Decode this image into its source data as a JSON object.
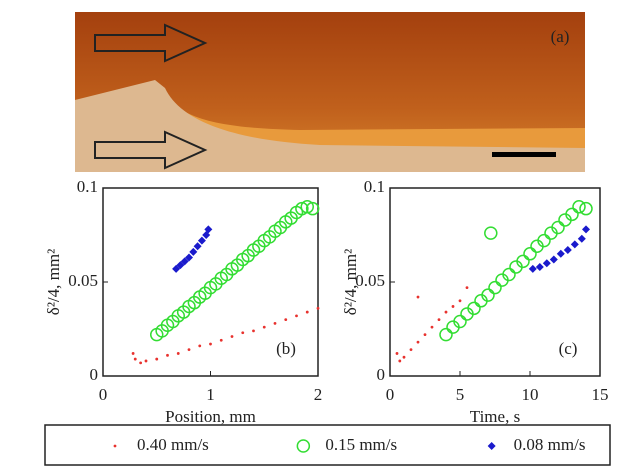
{
  "image": {
    "label": "(a)"
  },
  "chart_data": [
    {
      "type": "scatter",
      "panel_label": "(b)",
      "xlabel": "Position, mm",
      "ylabel": "δ²/4, mm²",
      "xlim": [
        0,
        2
      ],
      "ylim": [
        0,
        0.1
      ],
      "xticks": [
        0,
        1,
        2
      ],
      "yticks": [
        0,
        0.05,
        0.1
      ],
      "legend": "bottom",
      "series": [
        {
          "name": "0.40 mm/s",
          "color": "#e8322e",
          "marker": "dot",
          "x": [
            0.28,
            0.3,
            0.35,
            0.4,
            0.5,
            0.6,
            0.7,
            0.8,
            0.9,
            1.0,
            1.1,
            1.2,
            1.3,
            1.4,
            1.5,
            1.6,
            1.7,
            1.8,
            1.9,
            2.0
          ],
          "values": [
            0.012,
            0.009,
            0.007,
            0.008,
            0.009,
            0.011,
            0.012,
            0.014,
            0.016,
            0.017,
            0.019,
            0.021,
            0.023,
            0.024,
            0.026,
            0.028,
            0.03,
            0.032,
            0.034,
            0.036
          ]
        },
        {
          "name": "0.15 mm/s",
          "color": "#33dd33",
          "marker": "circle",
          "x": [
            0.5,
            0.55,
            0.6,
            0.65,
            0.7,
            0.75,
            0.8,
            0.85,
            0.9,
            0.95,
            1.0,
            1.05,
            1.1,
            1.15,
            1.2,
            1.25,
            1.3,
            1.35,
            1.4,
            1.45,
            1.5,
            1.55,
            1.6,
            1.65,
            1.7,
            1.75,
            1.8,
            1.85,
            1.9,
            1.95
          ],
          "values": [
            0.022,
            0.024,
            0.027,
            0.029,
            0.032,
            0.034,
            0.037,
            0.039,
            0.042,
            0.044,
            0.047,
            0.049,
            0.052,
            0.054,
            0.057,
            0.059,
            0.062,
            0.064,
            0.067,
            0.069,
            0.072,
            0.074,
            0.077,
            0.079,
            0.082,
            0.084,
            0.087,
            0.089,
            0.09,
            0.089
          ]
        },
        {
          "name": "0.08 mm/s",
          "color": "#1a1acc",
          "marker": "diamond",
          "x": [
            0.68,
            0.72,
            0.76,
            0.8,
            0.84,
            0.88,
            0.92,
            0.96,
            0.98
          ],
          "values": [
            0.057,
            0.059,
            0.061,
            0.063,
            0.066,
            0.069,
            0.072,
            0.075,
            0.078
          ]
        }
      ]
    },
    {
      "type": "scatter",
      "panel_label": "(c)",
      "xlabel": "Time, s",
      "ylabel": "δ²/4, mm²",
      "xlim": [
        0,
        15
      ],
      "ylim": [
        0,
        0.1
      ],
      "xticks": [
        0,
        5,
        10,
        15
      ],
      "yticks": [
        0,
        0.05,
        0.1
      ],
      "series": [
        {
          "color": "#e8322e",
          "marker": "dot",
          "x": [
            0.5,
            0.7,
            1.0,
            1.5,
            2.0,
            2.5,
            3.0,
            3.5,
            4.0,
            4.5,
            5.0,
            2.0,
            5.5
          ],
          "values": [
            0.012,
            0.008,
            0.01,
            0.014,
            0.018,
            0.022,
            0.026,
            0.03,
            0.034,
            0.037,
            0.04,
            0.042,
            0.047
          ]
        },
        {
          "color": "#33dd33",
          "marker": "circle",
          "x": [
            4.0,
            4.5,
            5.0,
            5.5,
            6.0,
            6.5,
            7.0,
            7.5,
            8.0,
            8.5,
            9.0,
            9.5,
            10.0,
            10.5,
            11.0,
            11.5,
            12.0,
            12.5,
            13.0,
            13.5,
            14.0,
            7.2
          ],
          "values": [
            0.022,
            0.026,
            0.029,
            0.033,
            0.036,
            0.04,
            0.043,
            0.047,
            0.051,
            0.054,
            0.058,
            0.061,
            0.065,
            0.069,
            0.072,
            0.076,
            0.079,
            0.083,
            0.086,
            0.09,
            0.089,
            0.076
          ]
        },
        {
          "color": "#1a1acc",
          "marker": "diamond",
          "x": [
            10.2,
            10.7,
            11.2,
            11.7,
            12.2,
            12.7,
            13.2,
            13.7,
            14.0
          ],
          "values": [
            0.057,
            0.058,
            0.06,
            0.062,
            0.065,
            0.067,
            0.07,
            0.073,
            0.078
          ]
        }
      ]
    }
  ]
}
